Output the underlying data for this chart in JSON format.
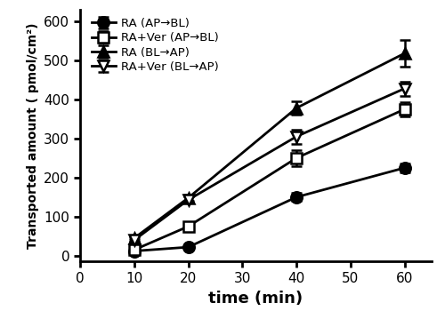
{
  "time": [
    10,
    20,
    40,
    60
  ],
  "series": [
    {
      "label": "RA (AP→BL)",
      "values": [
        12,
        22,
        150,
        225
      ],
      "errors": [
        3,
        3,
        10,
        12
      ],
      "marker": "o",
      "fillstyle": "full",
      "color": "#000000"
    },
    {
      "label": "RA+Ver (AP→BL)",
      "values": [
        15,
        75,
        250,
        375
      ],
      "errors": [
        3,
        8,
        20,
        18
      ],
      "marker": "s",
      "fillstyle": "none",
      "color": "#000000"
    },
    {
      "label": "RA (BL→AP)",
      "values": [
        45,
        148,
        378,
        518
      ],
      "errors": [
        5,
        8,
        18,
        35
      ],
      "marker": "^",
      "fillstyle": "full",
      "color": "#000000"
    },
    {
      "label": "RA+Ver (BL→AP)",
      "values": [
        40,
        143,
        305,
        428
      ],
      "errors": [
        5,
        8,
        18,
        18
      ],
      "marker": "v",
      "fillstyle": "none",
      "color": "#000000"
    }
  ],
  "xlabel": "time (min)",
  "ylabel": "Transported amount ( pmol/cm²)",
  "xlim": [
    0,
    65
  ],
  "ylim": [
    -15,
    630
  ],
  "xticks": [
    0,
    10,
    20,
    30,
    40,
    50,
    60
  ],
  "yticks": [
    0,
    100,
    200,
    300,
    400,
    500,
    600
  ],
  "background_color": "#ffffff",
  "linewidth": 2.0,
  "markersize": 9,
  "capsize": 4
}
